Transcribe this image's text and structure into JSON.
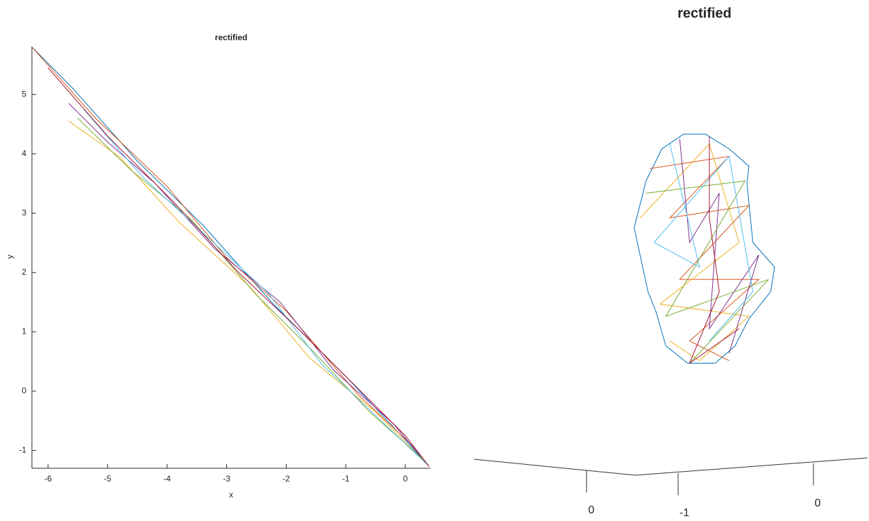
{
  "chart_data": [
    {
      "type": "line",
      "title": "rectified",
      "xlabel": "x",
      "ylabel": "y",
      "xlim": [
        -6.27,
        0.42
      ],
      "ylim": [
        -1.3,
        5.81
      ],
      "xticks": [
        -6,
        -5,
        -4,
        -3,
        -2,
        -1,
        0
      ],
      "yticks": [
        -1,
        0,
        1,
        2,
        3,
        4,
        5
      ],
      "series": [
        {
          "color": "#0072bd",
          "x": [
            -6.27,
            -5.6,
            -4.5,
            -3.4,
            -2.2,
            -1.0,
            0.0,
            0.4
          ],
          "y": [
            5.8,
            5.12,
            3.88,
            2.8,
            1.45,
            0.25,
            -0.82,
            -1.27
          ]
        },
        {
          "color": "#d95319",
          "x": [
            -6.27,
            -5.2,
            -4.0,
            -3.0,
            -2.0,
            -0.8,
            0.1,
            0.4
          ],
          "y": [
            5.8,
            4.6,
            3.45,
            2.25,
            1.35,
            -0.05,
            -0.9,
            -1.27
          ]
        },
        {
          "color": "#edb120",
          "x": [
            -5.65,
            -4.8,
            -3.8,
            -2.6,
            -1.6,
            -0.5,
            0.4
          ],
          "y": [
            4.55,
            3.95,
            2.85,
            1.75,
            0.55,
            -0.35,
            -1.27
          ]
        },
        {
          "color": "#7e2f8e",
          "x": [
            -5.65,
            -5.0,
            -4.2,
            -3.2,
            -2.1,
            -1.2,
            -0.2,
            0.4
          ],
          "y": [
            4.85,
            4.2,
            3.5,
            2.4,
            1.5,
            0.35,
            -0.55,
            -1.27
          ]
        },
        {
          "color": "#77ac30",
          "x": [
            -5.5,
            -4.6,
            -3.6,
            -2.5,
            -1.5,
            -0.6,
            0.3
          ],
          "y": [
            4.6,
            3.72,
            2.9,
            1.62,
            0.62,
            -0.35,
            -1.15
          ]
        },
        {
          "color": "#4dbeee",
          "x": [
            -5.4,
            -4.4,
            -3.3,
            -2.3,
            -1.4,
            -0.3,
            0.4
          ],
          "y": [
            4.75,
            3.6,
            2.58,
            1.65,
            0.45,
            -0.6,
            -1.27
          ]
        },
        {
          "color": "#a2142f",
          "x": [
            -6.0,
            -5.0,
            -3.9,
            -2.8,
            -1.8,
            -0.9,
            0.0,
            0.4
          ],
          "y": [
            5.45,
            4.3,
            3.2,
            2.0,
            1.05,
            0.15,
            -0.75,
            -1.27
          ]
        }
      ]
    },
    {
      "type": "line3d",
      "title": "rectified",
      "xlim": [
        -1,
        1
      ],
      "ylim": [
        -1,
        1
      ],
      "ticks": [
        0,
        -1,
        0
      ],
      "series": [
        {
          "color": "#0072bd",
          "x": [
            0.07,
            0.18,
            0.3,
            0.4,
            0.39,
            0.42,
            0.53,
            0.51,
            0.4,
            0.33,
            0.23,
            0.09,
            -0.02,
            -0.07,
            -0.11,
            -0.18,
            -0.12,
            -0.04,
            0.07
          ],
          "y": [
            0.54,
            0.54,
            0.48,
            0.41,
            0.34,
            0.1,
            0.0,
            -0.1,
            -0.21,
            -0.32,
            -0.39,
            -0.39,
            -0.32,
            -0.18,
            -0.1,
            0.16,
            0.35,
            0.48,
            0.54
          ]
        },
        {
          "color": "#d95319",
          "x": [
            -0.1,
            0.3,
            0.0,
            0.4,
            0.05,
            0.45,
            0.1,
            0.3
          ],
          "y": [
            0.4,
            0.45,
            0.2,
            0.25,
            -0.05,
            -0.05,
            -0.3,
            -0.38
          ]
        },
        {
          "color": "#edb120",
          "x": [
            -0.15,
            0.2,
            0.35,
            -0.05,
            0.4,
            0.15,
            0.0
          ],
          "y": [
            0.2,
            0.5,
            0.1,
            -0.15,
            -0.2,
            -0.38,
            -0.3
          ]
        },
        {
          "color": "#7e2f8e",
          "x": [
            0.05,
            0.1,
            0.25,
            0.2,
            0.45,
            0.3
          ],
          "y": [
            0.52,
            0.1,
            0.3,
            -0.25,
            0.05,
            -0.35
          ]
        },
        {
          "color": "#77ac30",
          "x": [
            -0.12,
            0.38,
            -0.02,
            0.5,
            0.1
          ],
          "y": [
            0.3,
            0.35,
            -0.2,
            -0.05,
            -0.39
          ]
        },
        {
          "color": "#4dbeee",
          "x": [
            0.0,
            0.15,
            -0.08,
            0.3,
            0.42,
            0.2
          ],
          "y": [
            0.5,
            0.0,
            0.1,
            0.45,
            -0.1,
            -0.3
          ]
        },
        {
          "color": "#a2142f",
          "x": [
            0.2,
            0.2,
            0.25,
            0.1,
            0.35
          ],
          "y": [
            0.53,
            0.2,
            -0.1,
            -0.39,
            -0.25
          ]
        }
      ]
    }
  ]
}
